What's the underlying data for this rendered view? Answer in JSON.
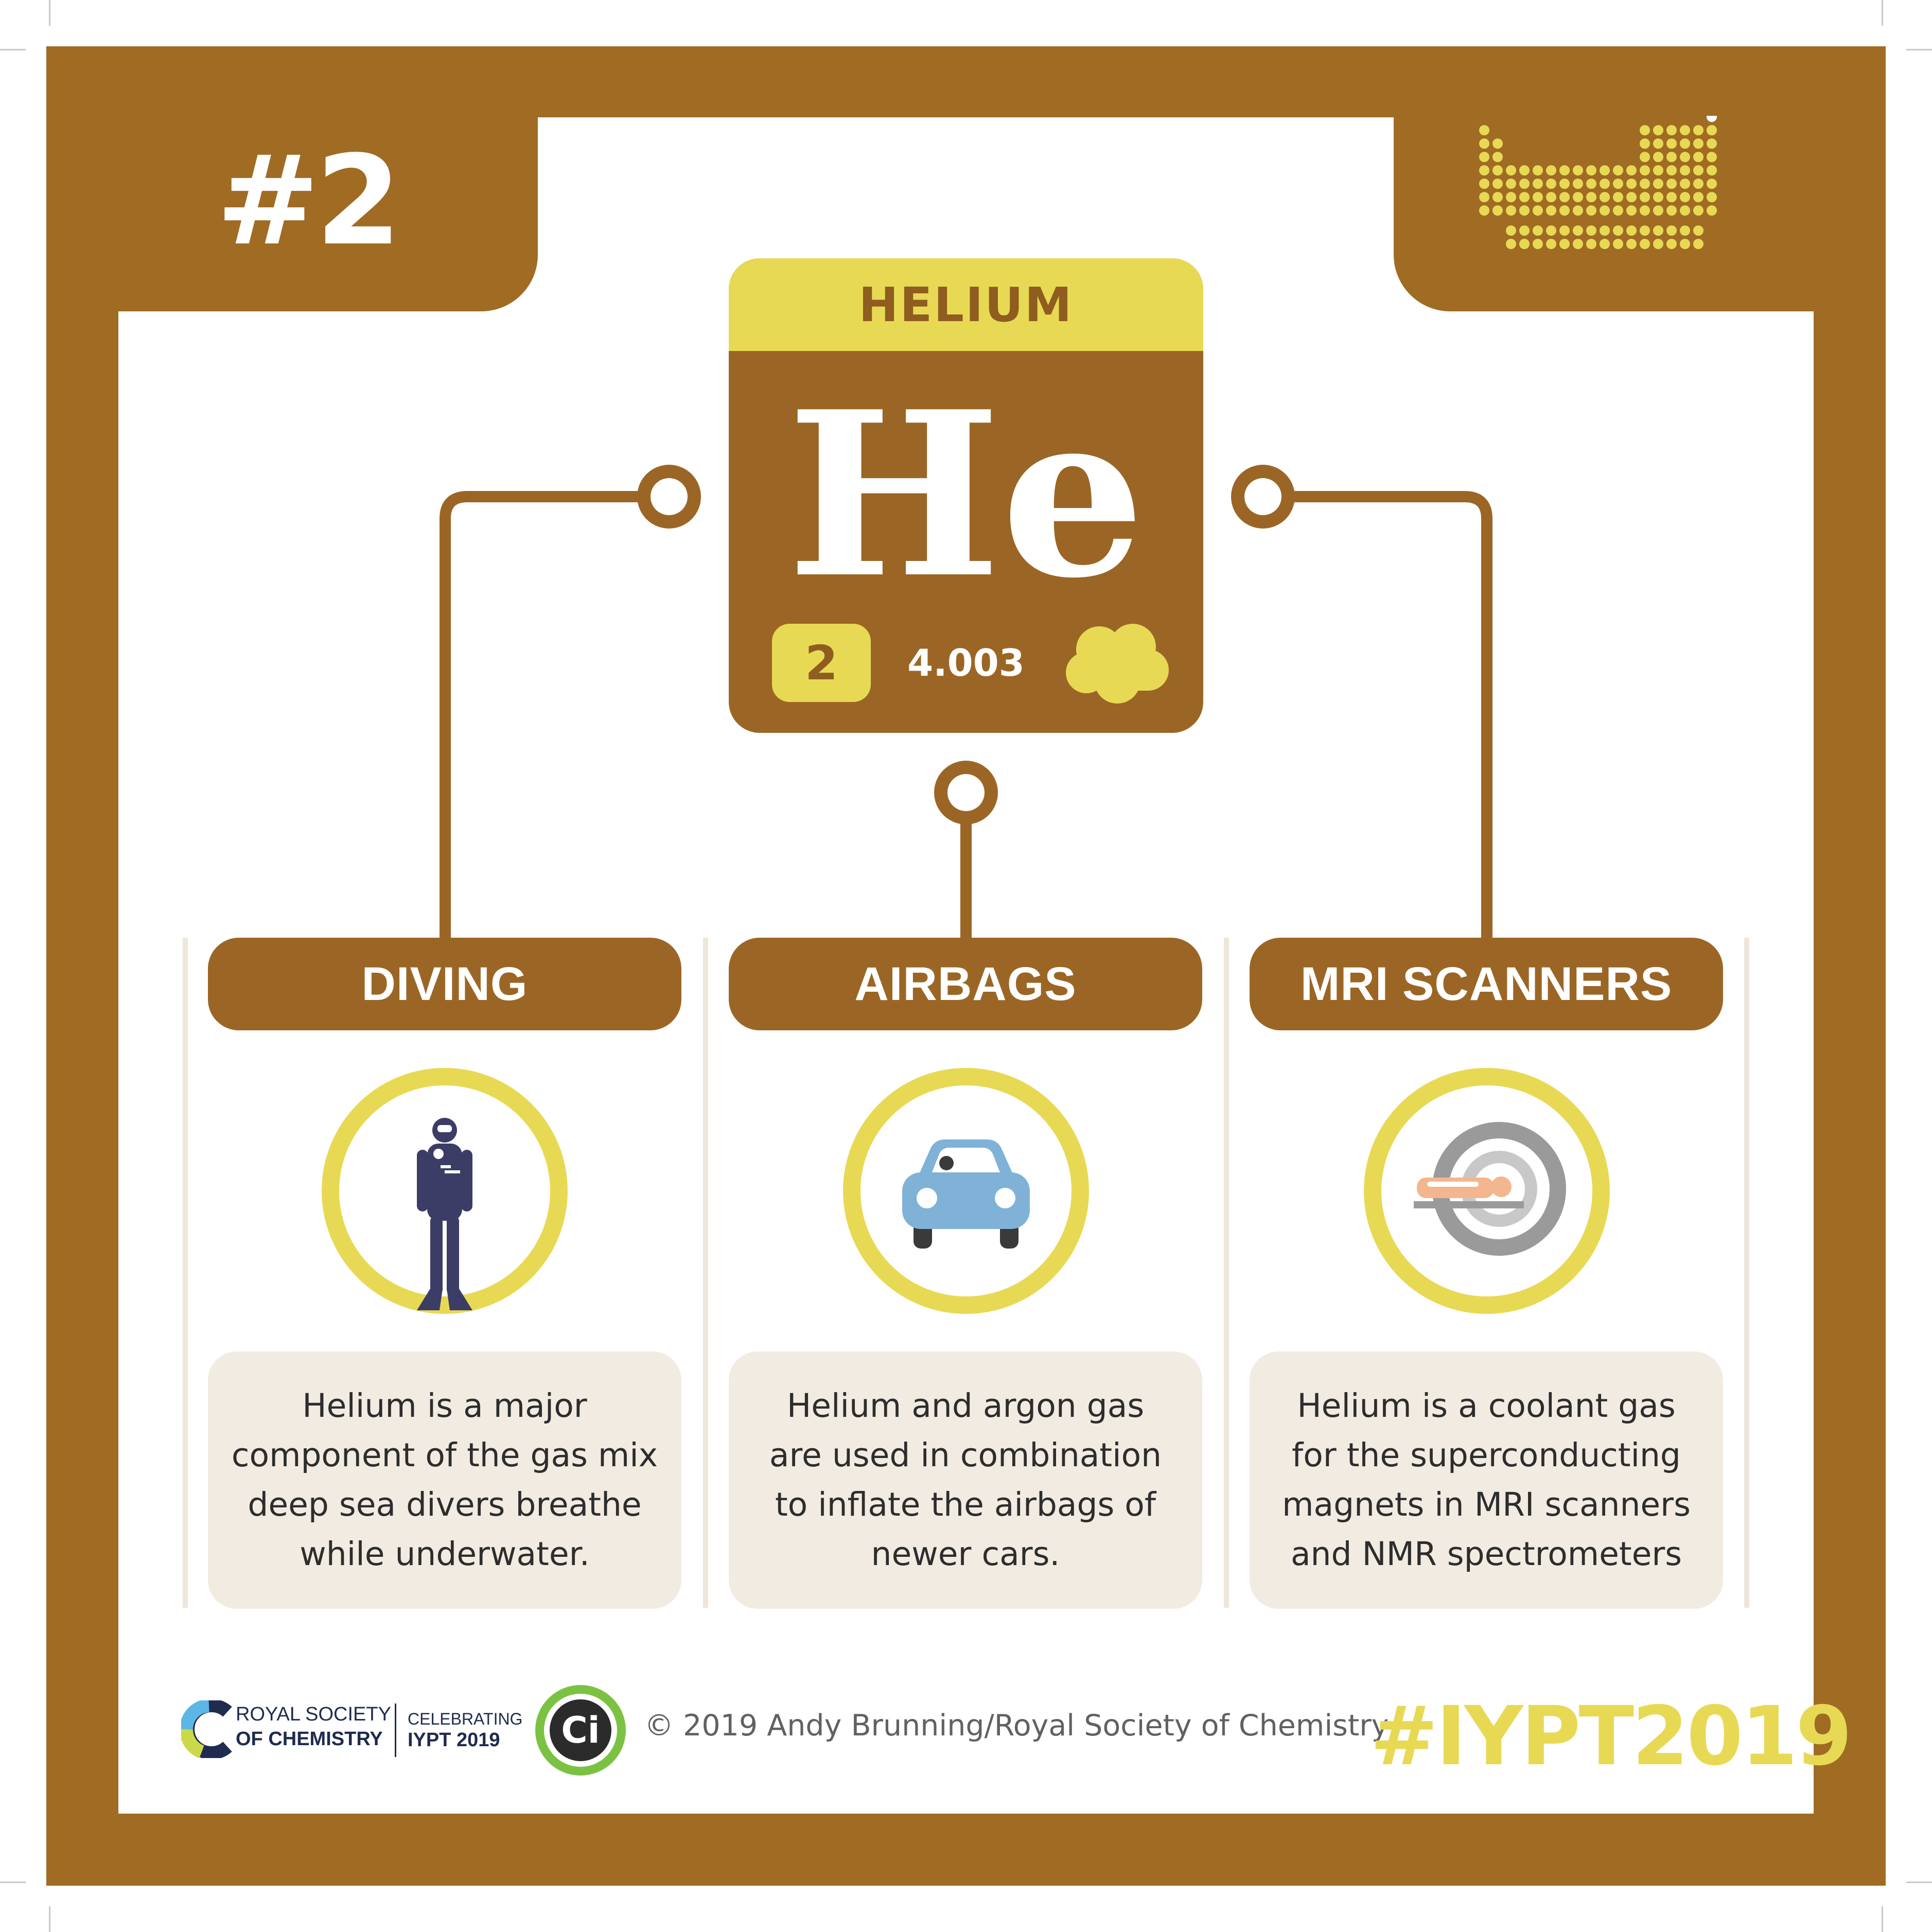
{
  "badge": {
    "number": "#2"
  },
  "element": {
    "name": "HELIUM",
    "symbol": "He",
    "atomic_number": "2",
    "atomic_mass": "4.003",
    "state_icon": "gas-cloud-icon"
  },
  "uses": [
    {
      "title": "DIVING",
      "icon": "scuba-diver-icon",
      "text": "Helium is a major\ncomponent of the gas mix\ndeep sea divers breathe\nwhile underwater."
    },
    {
      "title": "AIRBAGS",
      "icon": "car-icon",
      "text": "Helium and argon gas\nare used in combination\nto inflate the airbags of\nnewer cars."
    },
    {
      "title": "MRI SCANNERS",
      "icon": "mri-scanner-icon",
      "text": "Helium is a coolant gas\nfor the superconducting\nmagnets in MRI scanners\nand NMR spectrometers"
    }
  ],
  "footer": {
    "rsc_line1": "ROYAL SOCIETY",
    "rsc_line2": "OF CHEMISTRY",
    "celebrating_line1": "CELEBRATING",
    "celebrating_line2": "IYPT 2019",
    "ci_logo": "Ci",
    "credit": "© 2019 Andy Brunning/Royal Society of Chemistry",
    "hashtag": "#IYPT2019"
  },
  "colors": {
    "brown": "#a06b23",
    "yellow": "#e8d955",
    "cream": "#f1ebe2",
    "diver": "#3b3d66",
    "car": "#7fb2d6",
    "mri_grey": "#9a9a9a",
    "mri_patient": "#f3b68e"
  }
}
